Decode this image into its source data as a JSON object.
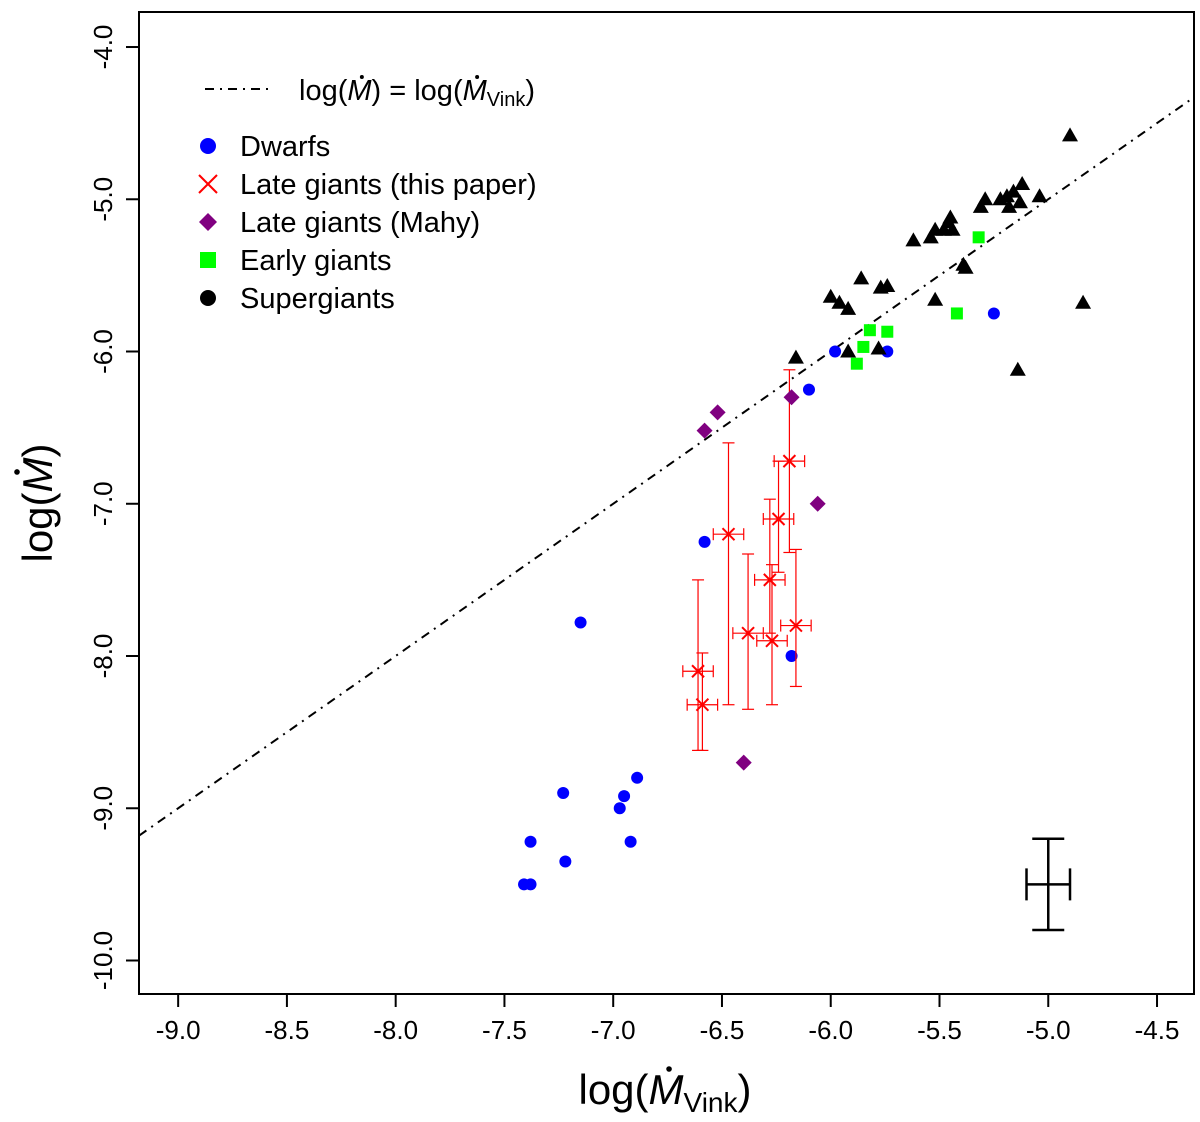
{
  "chart_data": {
    "type": "scatter",
    "title": "",
    "xlabel": {
      "main": "log(",
      "sym": "M",
      "sub": "Vink",
      "close": ")"
    },
    "ylabel": {
      "main": "log(",
      "sym": "M",
      "close": ")"
    },
    "xlim": [
      -9.18,
      -4.33
    ],
    "ylim": [
      -10.22,
      -3.77
    ],
    "xticks": [
      -9.0,
      -8.5,
      -8.0,
      -7.5,
      -7.0,
      -6.5,
      -6.0,
      -5.5,
      -5.0,
      -4.5
    ],
    "xtick_labels": [
      "-9.0",
      "-8.5",
      "-8.0",
      "-7.5",
      "-7.0",
      "-6.5",
      "-6.0",
      "-5.5",
      "-5.0",
      "-4.5"
    ],
    "yticks": [
      -4.0,
      -5.0,
      -6.0,
      -7.0,
      -8.0,
      -9.0,
      -10.0
    ],
    "ytick_labels": [
      "-4.0",
      "-5.0",
      "-6.0",
      "-7.0",
      "-8.0",
      "-9.0",
      "-10.0"
    ],
    "grid": false,
    "legend_position": "top-left",
    "reference_line": {
      "label": {
        "left": "log(",
        "sym1": "M",
        "mid": ") = log(",
        "sym2": "M",
        "sub": "Vink",
        "close": ")"
      },
      "color": "#000000",
      "style": "dash-dot"
    },
    "series": [
      {
        "name": "Dwarfs",
        "marker": "circle",
        "color": "#0000ff",
        "points": [
          [
            -5.98,
            -6.0
          ],
          [
            -5.74,
            -6.0
          ],
          [
            -5.25,
            -5.75
          ],
          [
            -6.1,
            -6.25
          ],
          [
            -6.58,
            -7.25
          ],
          [
            -7.15,
            -7.78
          ],
          [
            -6.18,
            -8.0
          ],
          [
            -6.89,
            -8.8
          ],
          [
            -6.95,
            -8.92
          ],
          [
            -7.23,
            -8.9
          ],
          [
            -6.97,
            -9.0
          ],
          [
            -6.92,
            -9.22
          ],
          [
            -7.38,
            -9.22
          ],
          [
            -7.22,
            -9.35
          ],
          [
            -7.41,
            -9.5
          ],
          [
            -7.38,
            -9.5
          ]
        ]
      },
      {
        "name": "Late giants (this paper)",
        "marker": "cross",
        "color": "#ff0000",
        "points": [
          {
            "x": -6.19,
            "y": -6.72,
            "xerr": 0.07,
            "ylo": -7.32,
            "yhi": -6.12
          },
          {
            "x": -6.24,
            "y": -7.1,
            "xerr": 0.07,
            "ylo": -7.45,
            "yhi": -6.72
          },
          {
            "x": -6.47,
            "y": -7.2,
            "xerr": 0.07,
            "ylo": -8.32,
            "yhi": -6.6
          },
          {
            "x": -6.28,
            "y": -7.5,
            "xerr": 0.07,
            "ylo": -7.85,
            "yhi": -6.97
          },
          {
            "x": -6.16,
            "y": -7.8,
            "xerr": 0.07,
            "ylo": -8.2,
            "yhi": -7.3
          },
          {
            "x": -6.38,
            "y": -7.85,
            "xerr": 0.07,
            "ylo": -8.35,
            "yhi": -7.33
          },
          {
            "x": -6.27,
            "y": -7.9,
            "xerr": 0.07,
            "ylo": -8.32,
            "yhi": -7.4
          },
          {
            "x": -6.61,
            "y": -8.1,
            "xerr": 0.07,
            "ylo": -8.62,
            "yhi": -7.5
          },
          {
            "x": -6.59,
            "y": -8.32,
            "xerr": 0.07,
            "ylo": -8.62,
            "yhi": -7.98
          }
        ]
      },
      {
        "name": "Late giants (Mahy)",
        "marker": "diamond",
        "color": "#800080",
        "points": [
          [
            -6.18,
            -6.3
          ],
          [
            -6.52,
            -6.4
          ],
          [
            -6.58,
            -6.52
          ],
          [
            -6.06,
            -7.0
          ],
          [
            -6.4,
            -8.7
          ]
        ]
      },
      {
        "name": "Early giants",
        "marker": "square",
        "color": "#00ff00",
        "points": [
          [
            -5.32,
            -5.25
          ],
          [
            -5.82,
            -5.86
          ],
          [
            -5.74,
            -5.87
          ],
          [
            -5.42,
            -5.75
          ],
          [
            -5.85,
            -5.97
          ],
          [
            -5.88,
            -6.08
          ]
        ]
      },
      {
        "name": "Supergiants",
        "legend_marker": "circle",
        "marker": "triangle",
        "color": "#000000",
        "points": [
          [
            -4.9,
            -4.58
          ],
          [
            -5.12,
            -4.9
          ],
          [
            -5.04,
            -4.98
          ],
          [
            -5.16,
            -4.95
          ],
          [
            -5.22,
            -5.0
          ],
          [
            -5.19,
            -4.98
          ],
          [
            -5.29,
            -5.0
          ],
          [
            -5.31,
            -5.05
          ],
          [
            -5.18,
            -5.05
          ],
          [
            -5.13,
            -5.02
          ],
          [
            -5.45,
            -5.12
          ],
          [
            -5.46,
            -5.15
          ],
          [
            -5.52,
            -5.2
          ],
          [
            -5.48,
            -5.2
          ],
          [
            -5.44,
            -5.2
          ],
          [
            -5.54,
            -5.25
          ],
          [
            -5.62,
            -5.27
          ],
          [
            -5.39,
            -5.43
          ],
          [
            -5.38,
            -5.45
          ],
          [
            -5.86,
            -5.52
          ],
          [
            -5.77,
            -5.58
          ],
          [
            -5.74,
            -5.57
          ],
          [
            -6.0,
            -5.64
          ],
          [
            -5.96,
            -5.68
          ],
          [
            -5.92,
            -5.72
          ],
          [
            -5.52,
            -5.66
          ],
          [
            -4.84,
            -5.68
          ],
          [
            -6.16,
            -6.04
          ],
          [
            -5.92,
            -6.0
          ],
          [
            -5.78,
            -5.98
          ],
          [
            -5.14,
            -6.12
          ]
        ]
      }
    ],
    "reference_error_bar": {
      "x": -5.0,
      "y": -9.5,
      "xerr": 0.1,
      "yerr": 0.3,
      "color": "#000000"
    }
  }
}
